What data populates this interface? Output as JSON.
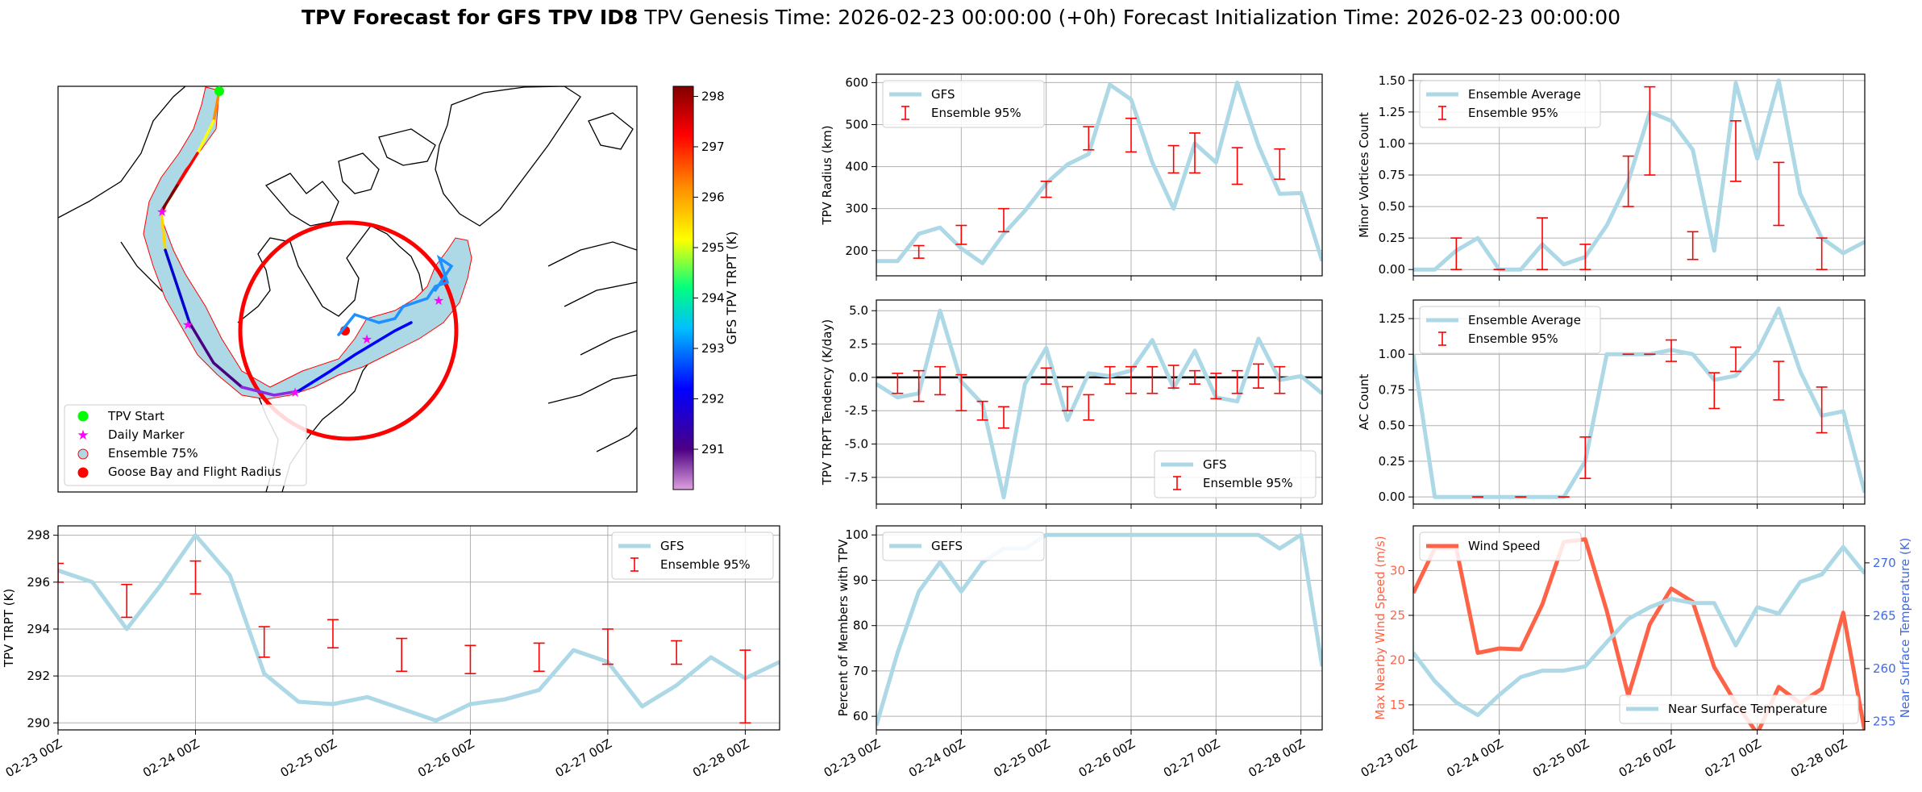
{
  "title": {
    "bold": "TPV Forecast for GFS TPV ID8",
    "genesis": "TPV Genesis Time: 2026-02-23 00:00:00 (+0h)",
    "init": "Forecast Initialization Time: 2026-02-23 00:00:00"
  },
  "time_ticks": [
    "02-23 00Z",
    "02-24 00Z",
    "02-25 00Z",
    "02-26 00Z",
    "02-27 00Z",
    "02-28 00Z"
  ],
  "colors": {
    "line": "#add8e6",
    "err": "#ff0000",
    "wind": "#ff6347",
    "temp_axis": "#4169e1",
    "wind_axis": "#ff6347"
  },
  "map": {
    "legend": [
      "TPV Start",
      "Daily Marker",
      "Ensemble 75%",
      "Goose Bay and Flight Radius"
    ],
    "colorbar": {
      "label": "GFS TPV TRPT (K)",
      "min": 290.2,
      "max": 298.2,
      "ticks": [
        291,
        292,
        293,
        294,
        295,
        296,
        297,
        298
      ]
    }
  },
  "chart_data": [
    {
      "id": "radius",
      "type": "line",
      "ylabel": "TPV Radius (km)",
      "ylim": [
        140,
        620
      ],
      "yticks": [
        200,
        300,
        400,
        500,
        600
      ],
      "yticklabels": [
        "200",
        "300",
        "400",
        "500",
        "600"
      ],
      "legend": [
        "GFS",
        "Ensemble 95%"
      ],
      "legend_loc": "upper-left",
      "x": [
        0,
        0.25,
        0.5,
        0.75,
        1,
        1.25,
        1.5,
        1.75,
        2,
        2.25,
        2.5,
        2.75,
        3,
        3.25,
        3.5,
        3.75,
        4,
        4.25,
        4.5,
        4.75,
        5,
        5.25
      ],
      "series": [
        {
          "name": "GFS",
          "values": [
            175,
            175,
            240,
            255,
            205,
            170,
            240,
            295,
            360,
            405,
            430,
            595,
            560,
            410,
            300,
            455,
            410,
            600,
            450,
            335,
            337,
            175
          ]
        }
      ],
      "errorbars": [
        {
          "x": 0.5,
          "lo": 182,
          "hi": 212
        },
        {
          "x": 1,
          "lo": 215,
          "hi": 260
        },
        {
          "x": 1.5,
          "lo": 245,
          "hi": 300
        },
        {
          "x": 2,
          "lo": 327,
          "hi": 365
        },
        {
          "x": 2.5,
          "lo": 440,
          "hi": 495
        },
        {
          "x": 3,
          "lo": 435,
          "hi": 515
        },
        {
          "x": 3.5,
          "lo": 385,
          "hi": 450
        },
        {
          "x": 3.75,
          "lo": 385,
          "hi": 480
        },
        {
          "x": 4.25,
          "lo": 358,
          "hi": 445
        },
        {
          "x": 4.75,
          "lo": 370,
          "hi": 442
        }
      ]
    },
    {
      "id": "minor",
      "type": "line",
      "ylabel": "Minor Vortices Count",
      "ylim": [
        -0.05,
        1.55
      ],
      "yticks": [
        0,
        0.25,
        0.5,
        0.75,
        1,
        1.25,
        1.5
      ],
      "yticklabels": [
        "0.00",
        "0.25",
        "0.50",
        "0.75",
        "1.00",
        "1.25",
        "1.50"
      ],
      "legend": [
        "Ensemble Average",
        "Ensemble 95%"
      ],
      "legend_loc": "upper-left",
      "x": [
        0,
        0.25,
        0.5,
        0.75,
        1,
        1.25,
        1.5,
        1.75,
        2,
        2.25,
        2.5,
        2.75,
        3,
        3.25,
        3.5,
        3.75,
        4,
        4.25,
        4.5,
        4.75,
        5,
        5.25
      ],
      "series": [
        {
          "name": "Ensemble Average",
          "values": [
            0,
            0,
            0.15,
            0.25,
            0,
            0,
            0.2,
            0.04,
            0.1,
            0.35,
            0.7,
            1.25,
            1.18,
            0.95,
            0.15,
            1.48,
            0.88,
            1.5,
            0.6,
            0.25,
            0.13,
            0.22
          ]
        }
      ],
      "errorbars": [
        {
          "x": 0.5,
          "lo": 0,
          "hi": 0.25
        },
        {
          "x": 1.0,
          "lo": 0,
          "hi": 0
        },
        {
          "x": 1.5,
          "lo": 0,
          "hi": 0.41
        },
        {
          "x": 2.0,
          "lo": 0,
          "hi": 0.2
        },
        {
          "x": 2.5,
          "lo": 0.5,
          "hi": 0.9
        },
        {
          "x": 2.75,
          "lo": 0.75,
          "hi": 1.45
        },
        {
          "x": 3.25,
          "lo": 0.08,
          "hi": 0.3
        },
        {
          "x": 3.75,
          "lo": 0.7,
          "hi": 1.18
        },
        {
          "x": 4.25,
          "lo": 0.35,
          "hi": 0.85
        },
        {
          "x": 4.75,
          "lo": 0.0,
          "hi": 0.25
        }
      ]
    },
    {
      "id": "tendency",
      "type": "line",
      "ylabel": "TPV TRPT Tendency (K/day)",
      "ylim": [
        -9.5,
        5.8
      ],
      "yticks": [
        -7.5,
        -5,
        -2.5,
        0,
        2.5,
        5
      ],
      "yticklabels": [
        "-7.5",
        "-5.0",
        "-2.5",
        "0.0",
        "2.5",
        "5.0"
      ],
      "legend": [
        "GFS",
        "Ensemble 95%"
      ],
      "legend_loc": "lower-right",
      "zero_line": true,
      "x": [
        0,
        0.25,
        0.5,
        0.75,
        1,
        1.25,
        1.5,
        1.75,
        2,
        2.25,
        2.5,
        2.75,
        3,
        3.25,
        3.5,
        3.75,
        4,
        4.25,
        4.5,
        4.75,
        5,
        5.25
      ],
      "series": [
        {
          "name": "GFS",
          "values": [
            -0.5,
            -1.5,
            -1.2,
            5,
            -0.3,
            -2,
            -9,
            -0.5,
            2.2,
            -3.2,
            0.3,
            0.1,
            0.5,
            2.8,
            -0.8,
            2,
            -1.5,
            -1.8,
            2.9,
            -0.2,
            0.1,
            -1.2
          ]
        }
      ],
      "errorbars": [
        {
          "x": 0.25,
          "lo": -1.2,
          "hi": 0.3
        },
        {
          "x": 0.5,
          "lo": -1.8,
          "hi": 0.5
        },
        {
          "x": 0.75,
          "lo": -1.3,
          "hi": 0.8
        },
        {
          "x": 1.0,
          "lo": -2.5,
          "hi": 0.2
        },
        {
          "x": 1.25,
          "lo": -3.2,
          "hi": -1.8
        },
        {
          "x": 1.5,
          "lo": -3.8,
          "hi": -2.2
        },
        {
          "x": 2.0,
          "lo": -0.5,
          "hi": 0.7
        },
        {
          "x": 2.25,
          "lo": -2.5,
          "hi": -0.7
        },
        {
          "x": 2.5,
          "lo": -3.2,
          "hi": -1.3
        },
        {
          "x": 2.75,
          "lo": -0.5,
          "hi": 0.8
        },
        {
          "x": 3.0,
          "lo": -1.2,
          "hi": 0.8
        },
        {
          "x": 3.25,
          "lo": -1.2,
          "hi": 0.8
        },
        {
          "x": 3.5,
          "lo": -0.8,
          "hi": 0.9
        },
        {
          "x": 3.75,
          "lo": -0.5,
          "hi": 0.5
        },
        {
          "x": 4.0,
          "lo": -1.6,
          "hi": 0.3
        },
        {
          "x": 4.25,
          "lo": -1.2,
          "hi": 0.5
        },
        {
          "x": 4.5,
          "lo": -0.8,
          "hi": 1.0
        },
        {
          "x": 4.75,
          "lo": -1.2,
          "hi": 0.8
        }
      ]
    },
    {
      "id": "ac",
      "type": "line",
      "ylabel": "AC Count",
      "ylim": [
        -0.05,
        1.38
      ],
      "yticks": [
        0,
        0.25,
        0.5,
        0.75,
        1,
        1.25
      ],
      "yticklabels": [
        "0.00",
        "0.25",
        "0.50",
        "0.75",
        "1.00",
        "1.25"
      ],
      "legend": [
        "Ensemble Average",
        "Ensemble 95%"
      ],
      "legend_loc": "upper-left",
      "x": [
        0,
        0.25,
        0.5,
        0.75,
        1,
        1.25,
        1.5,
        1.75,
        2,
        2.25,
        2.5,
        2.75,
        3,
        3.25,
        3.5,
        3.75,
        4,
        4.25,
        4.5,
        4.75,
        5,
        5.25
      ],
      "series": [
        {
          "name": "Ensemble Average",
          "values": [
            1.0,
            0,
            0,
            0,
            0,
            0,
            0,
            0,
            0.25,
            1.0,
            1.0,
            1.0,
            1.03,
            1.0,
            0.82,
            0.85,
            1.02,
            1.32,
            0.88,
            0.57,
            0.6,
            0.03
          ]
        }
      ],
      "errorbars": [
        {
          "x": 0.75,
          "lo": 0,
          "hi": 0
        },
        {
          "x": 1.25,
          "lo": 0,
          "hi": 0
        },
        {
          "x": 1.75,
          "lo": 0,
          "hi": 0
        },
        {
          "x": 2.0,
          "lo": 0.13,
          "hi": 0.42
        },
        {
          "x": 2.5,
          "lo": 1.0,
          "hi": 1.0
        },
        {
          "x": 2.75,
          "lo": 1.0,
          "hi": 1.0
        },
        {
          "x": 3.0,
          "lo": 0.95,
          "hi": 1.1
        },
        {
          "x": 3.5,
          "lo": 0.62,
          "hi": 0.87
        },
        {
          "x": 3.75,
          "lo": 0.88,
          "hi": 1.05
        },
        {
          "x": 4.25,
          "lo": 0.68,
          "hi": 0.95
        },
        {
          "x": 4.75,
          "lo": 0.45,
          "hi": 0.77
        }
      ]
    },
    {
      "id": "trpt",
      "type": "line",
      "ylabel": "TPV TRPT (K)",
      "ylim": [
        289.7,
        298.4
      ],
      "yticks": [
        290,
        292,
        294,
        296,
        298
      ],
      "yticklabels": [
        "290",
        "292",
        "294",
        "296",
        "298"
      ],
      "legend": [
        "GFS",
        "Ensemble 95%"
      ],
      "legend_loc": "upper-right",
      "x": [
        0,
        0.25,
        0.5,
        0.75,
        1,
        1.25,
        1.5,
        1.75,
        2,
        2.25,
        2.5,
        2.75,
        3,
        3.25,
        3.5,
        3.75,
        4,
        4.25,
        4.5,
        4.75,
        5,
        5.25
      ],
      "series": [
        {
          "name": "GFS",
          "values": [
            296.5,
            296.0,
            294.0,
            295.9,
            298.0,
            296.3,
            292.1,
            290.9,
            290.8,
            291.1,
            290.6,
            290.1,
            290.8,
            291.0,
            291.4,
            293.1,
            292.6,
            290.7,
            291.6,
            292.8,
            291.9,
            292.6
          ]
        }
      ],
      "errorbars": [
        {
          "x": 0,
          "lo": 296.0,
          "hi": 296.8
        },
        {
          "x": 0.5,
          "lo": 294.5,
          "hi": 295.9
        },
        {
          "x": 1.0,
          "lo": 295.5,
          "hi": 296.9
        },
        {
          "x": 1.5,
          "lo": 292.8,
          "hi": 294.1
        },
        {
          "x": 2.0,
          "lo": 293.2,
          "hi": 294.4
        },
        {
          "x": 2.5,
          "lo": 292.2,
          "hi": 293.6
        },
        {
          "x": 3.0,
          "lo": 292.1,
          "hi": 293.3
        },
        {
          "x": 3.5,
          "lo": 292.2,
          "hi": 293.4
        },
        {
          "x": 4.0,
          "lo": 292.5,
          "hi": 294.0
        },
        {
          "x": 4.5,
          "lo": 292.5,
          "hi": 293.5
        },
        {
          "x": 5.0,
          "lo": 290.0,
          "hi": 293.1
        }
      ]
    },
    {
      "id": "members",
      "type": "line",
      "ylabel": "Percent of Members with TPV",
      "ylim": [
        57,
        102
      ],
      "yticks": [
        60,
        70,
        80,
        90,
        100
      ],
      "yticklabels": [
        "60",
        "70",
        "80",
        "90",
        "100"
      ],
      "legend": [
        "GEFS"
      ],
      "legend_loc": "upper-left",
      "x": [
        0,
        0.25,
        0.5,
        0.75,
        1,
        1.25,
        1.5,
        1.75,
        2,
        2.25,
        2.5,
        2.75,
        3,
        3.25,
        3.5,
        3.75,
        4,
        4.25,
        4.5,
        4.75,
        5,
        5.25
      ],
      "series": [
        {
          "name": "GEFS",
          "values": [
            58,
            74,
            87.5,
            94,
            87.5,
            94,
            97,
            97,
            100,
            100,
            100,
            100,
            100,
            100,
            100,
            100,
            100,
            100,
            100,
            97,
            100,
            71
          ]
        }
      ],
      "errorbars": []
    },
    {
      "id": "wind_temp",
      "type": "line",
      "ylabel": "Max Nearby Wind Speed (m/s)",
      "ylabel_right": "Near Surface Temperature (K)",
      "ylim": [
        12.2,
        35
      ],
      "yticks": [
        15,
        20,
        25,
        30
      ],
      "yticklabels": [
        "15",
        "20",
        "25",
        "30"
      ],
      "ylim_right": [
        254.2,
        273.5
      ],
      "yticks_right": [
        255,
        260,
        265,
        270
      ],
      "yticklabels_right": [
        "255",
        "260",
        "265",
        "270"
      ],
      "legend": [
        "Wind Speed"
      ],
      "legend_right": [
        "Near Surface Temperature"
      ],
      "x": [
        0,
        0.25,
        0.5,
        0.75,
        1,
        1.25,
        1.5,
        1.75,
        2,
        2.25,
        2.5,
        2.75,
        3,
        3.25,
        3.5,
        3.75,
        4,
        4.25,
        4.5,
        4.75,
        5,
        5.25
      ],
      "series": [
        {
          "name": "Wind Speed",
          "axis": "left",
          "values": [
            27.5,
            32.5,
            32.5,
            20.8,
            21.3,
            21.2,
            26.2,
            33.2,
            33.5,
            25.5,
            16.0,
            24.0,
            28.0,
            26.5,
            19.2,
            15.2,
            11.8,
            17.0,
            15.2,
            16.8,
            25.3,
            12.0
          ]
        },
        {
          "name": "Near Surface Temperature",
          "axis": "right",
          "values": [
            261.5,
            258.8,
            256.8,
            255.6,
            257.5,
            259.2,
            259.8,
            259.8,
            260.2,
            262.5,
            264.7,
            265.8,
            266.6,
            266.2,
            266.2,
            262.2,
            265.8,
            265.2,
            268.2,
            268.9,
            271.5,
            269.0
          ]
        }
      ],
      "errorbars": []
    }
  ]
}
